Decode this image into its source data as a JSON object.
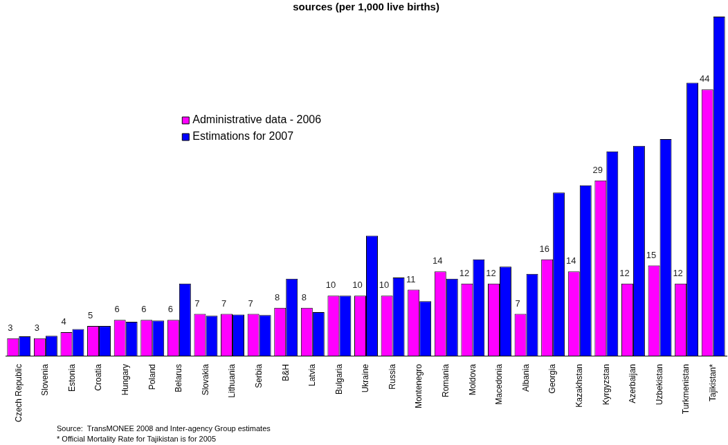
{
  "chart_data": {
    "type": "bar",
    "title": "sources (per 1,000 live births)",
    "categories": [
      "Czech Republic",
      "Slovenia",
      "Estonia",
      "Croatia",
      "Hungary",
      "Poland",
      "Belarus",
      "Slovakia",
      "Lithuania",
      "Serbia",
      "B&H",
      "Latvia",
      "Bulgaria",
      "Ukraine",
      "Russia",
      "Montenegro",
      "Romania",
      "Moldova",
      "Macedonia",
      "Albania",
      "Georgia",
      "Kazakhstan",
      "Kyrgyzstan",
      "Azerbaijan",
      "Uzbekistan",
      "Turkmenistan",
      "Tajikistan*"
    ],
    "series": [
      {
        "name": "Administrative data - 2006",
        "color": "#ff00ff",
        "values": [
          3,
          3,
          4,
          5,
          6,
          6,
          6,
          7,
          7,
          7,
          8,
          8,
          10,
          10,
          10,
          11,
          14,
          12,
          12,
          7,
          16,
          14,
          29,
          12,
          15,
          12,
          44
        ],
        "value_labels": [
          "3",
          "3",
          "4",
          "5",
          "6",
          "6",
          "6",
          "7",
          "7",
          "7",
          "8",
          "8",
          "10",
          "10",
          "10",
          "11",
          "14",
          "12",
          "12",
          "7",
          "16",
          "14",
          "29",
          "12",
          "15",
          "12",
          "44"
        ]
      },
      {
        "name": "Estimations for 2007",
        "color": "#0000ff",
        "values": [
          3.3,
          3.4,
          4.5,
          5,
          5.7,
          5.9,
          12,
          6.7,
          6.9,
          6.8,
          12.8,
          7.3,
          10,
          19.9,
          13,
          9.1,
          12.8,
          16,
          14.8,
          13.6,
          27,
          28.2,
          33.8,
          34.7,
          35.8,
          45.1,
          56
        ]
      }
    ],
    "ylim": [
      0,
      56
    ],
    "tick_labels": "x",
    "grid": false,
    "legend": "top left",
    "annotations": [
      "Source:  TransMONEE 2008 and Inter-agency Group estimates",
      "* Official Mortality Rate for Tajikistan is for 2005"
    ]
  }
}
